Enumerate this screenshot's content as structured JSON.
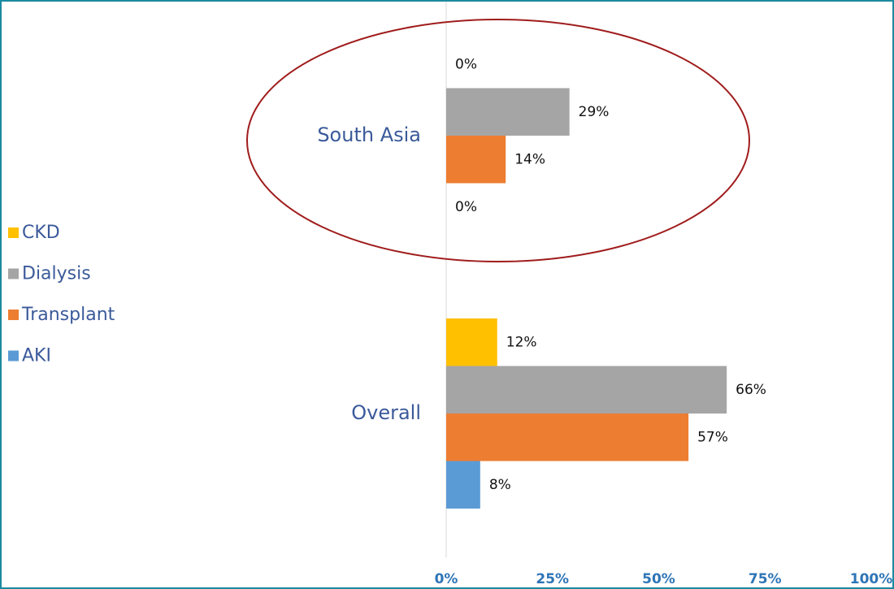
{
  "chart_data": {
    "type": "hbar",
    "categories": [
      "South Asia",
      "Overall"
    ],
    "series": [
      {
        "name": "CKD",
        "color": "#ffc000",
        "values": [
          0,
          12
        ],
        "value_labels": [
          "0%",
          "12%"
        ]
      },
      {
        "name": "Dialysis",
        "color": "#a5a5a5",
        "values": [
          29,
          66
        ],
        "value_labels": [
          "29%",
          "66%"
        ]
      },
      {
        "name": "Transplant",
        "color": "#ed7d31",
        "values": [
          14,
          57
        ],
        "value_labels": [
          "14%",
          "57%"
        ]
      },
      {
        "name": "AKI",
        "color": "#5b9bd5",
        "values": [
          0,
          8
        ],
        "value_labels": [
          "0%",
          "8%"
        ]
      }
    ],
    "xlim": [
      0,
      100
    ],
    "xticks": [
      {
        "value": 0,
        "label": "0%"
      },
      {
        "value": 25,
        "label": "25%"
      },
      {
        "value": 50,
        "label": "50%"
      },
      {
        "value": 75,
        "label": "75%"
      },
      {
        "value": 100,
        "label": "100%"
      }
    ],
    "legend": "left"
  }
}
